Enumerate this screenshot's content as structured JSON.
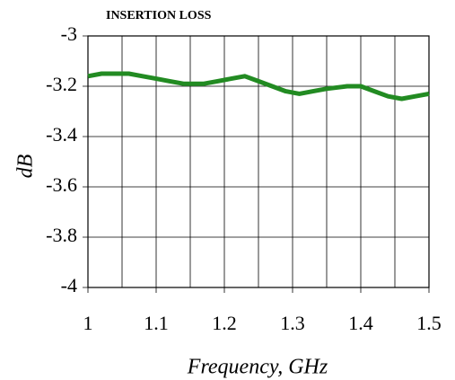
{
  "chart_data": {
    "type": "line",
    "title": "INSERTION LOSS",
    "xlabel": "Frequency, GHz",
    "ylabel": "dB",
    "x": [
      1.0,
      1.02,
      1.04,
      1.06,
      1.08,
      1.1,
      1.12,
      1.14,
      1.17,
      1.19,
      1.21,
      1.23,
      1.25,
      1.27,
      1.29,
      1.31,
      1.33,
      1.35,
      1.38,
      1.4,
      1.42,
      1.44,
      1.46,
      1.48,
      1.5
    ],
    "series": [
      {
        "name": "Insertion loss",
        "color": "#228b22",
        "values": [
          -3.16,
          -3.15,
          -3.15,
          -3.15,
          -3.16,
          -3.17,
          -3.18,
          -3.19,
          -3.19,
          -3.18,
          -3.17,
          -3.16,
          -3.18,
          -3.2,
          -3.22,
          -3.23,
          -3.22,
          -3.21,
          -3.2,
          -3.2,
          -3.22,
          -3.24,
          -3.25,
          -3.24,
          -3.23
        ]
      }
    ],
    "xlim": [
      1,
      1.5
    ],
    "xticks": [
      1,
      1.1,
      1.2,
      1.3,
      1.4,
      1.5
    ],
    "xgrid": [
      1.05,
      1.15,
      1.25,
      1.35,
      1.45
    ],
    "ylim": [
      -4,
      -3
    ],
    "yticks": [
      -4,
      -3.8,
      -3.6,
      -3.4,
      -3.2,
      -3
    ],
    "grid": true
  }
}
